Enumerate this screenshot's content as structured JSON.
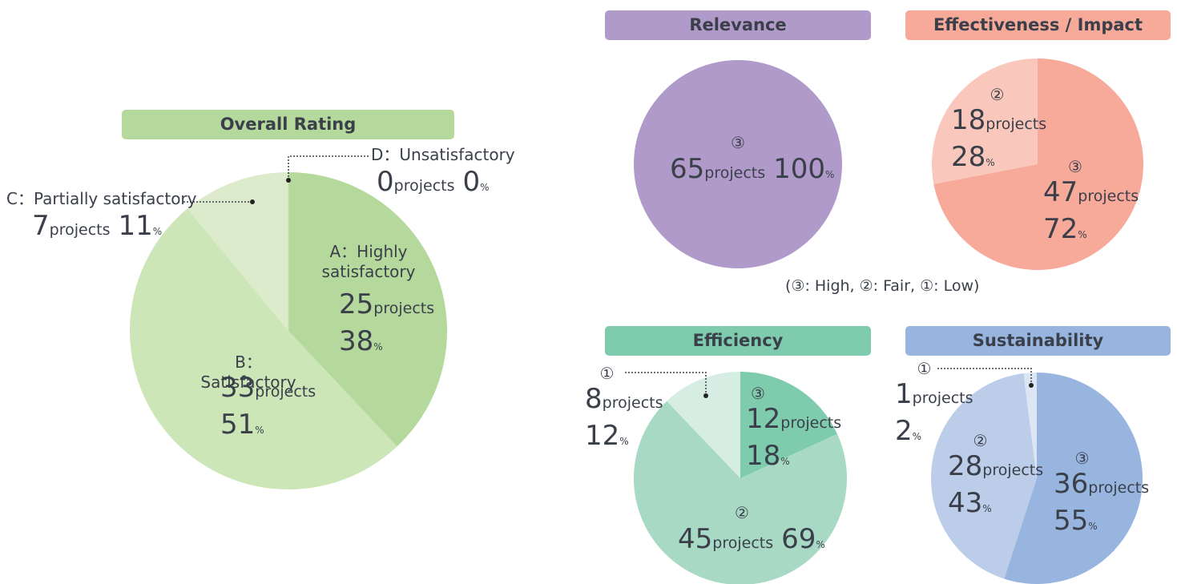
{
  "chart_data": [
    {
      "type": "pie",
      "title": "Overall Rating",
      "categories": [
        "A：Highly satisfactory",
        "B：Satisfactory",
        "C：Partially satisfactory",
        "D：Unsatisfactory"
      ],
      "counts": [
        25,
        33,
        7,
        0
      ],
      "values": [
        38,
        51,
        11,
        0
      ],
      "count_unit": "projects",
      "percent_unit": "%",
      "colors": [
        "#b5d99c",
        "#cce6b7",
        "#dcebcb",
        "#c4e1ad"
      ]
    },
    {
      "type": "pie",
      "title": "Relevance",
      "categories": [
        "③"
      ],
      "counts": [
        65
      ],
      "values": [
        100
      ],
      "count_unit": "projects",
      "percent_unit": "%",
      "colors": [
        "#b09aca"
      ]
    },
    {
      "type": "pie",
      "title": "Effectiveness / Impact",
      "categories": [
        "③",
        "②"
      ],
      "counts": [
        47,
        18
      ],
      "values": [
        72,
        28
      ],
      "count_unit": "projects",
      "percent_unit": "%",
      "colors": [
        "#f7a99a",
        "#f9c7bb"
      ],
      "note": "(③: High, ②: Fair, ①: Low)"
    },
    {
      "type": "pie",
      "title": "Efficiency",
      "categories": [
        "③",
        "②",
        "①"
      ],
      "counts": [
        12,
        45,
        8
      ],
      "values": [
        18,
        69,
        12
      ],
      "count_unit": "projects",
      "percent_unit": "%",
      "colors": [
        "#7fcbae",
        "#a7d9c5",
        "#d5ede3"
      ]
    },
    {
      "type": "pie",
      "title": "Sustainability",
      "categories": [
        "③",
        "②",
        "①"
      ],
      "counts": [
        36,
        28,
        1
      ],
      "values": [
        55,
        43,
        2
      ],
      "count_unit": "projects",
      "percent_unit": "%",
      "colors": [
        "#97b5df",
        "#bccde9",
        "#dce5f3"
      ]
    }
  ]
}
